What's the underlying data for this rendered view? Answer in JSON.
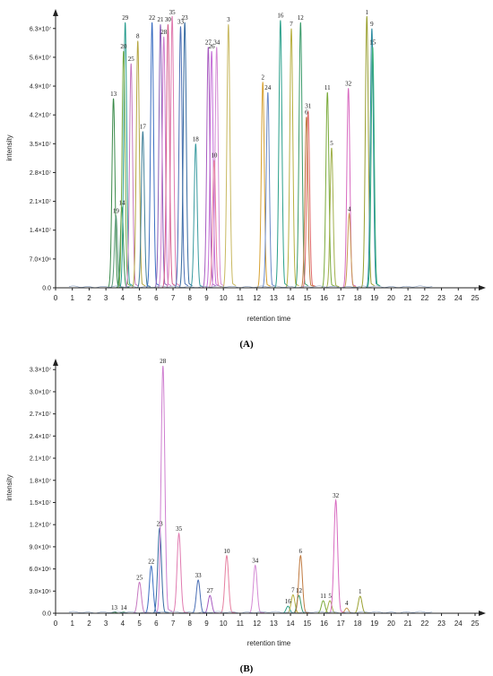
{
  "panels": [
    {
      "panel_label": "(A)",
      "chart_data": {
        "type": "line",
        "title": "",
        "xlabel": "retention time",
        "ylabel": "intensity",
        "xlim": [
          0,
          25
        ],
        "ylim": [
          0,
          66000000
        ],
        "x_ticks": [
          0,
          1,
          2,
          3,
          4,
          5,
          6,
          7,
          8,
          9,
          10,
          11,
          12,
          13,
          14,
          15,
          16,
          17,
          18,
          19,
          20,
          21,
          22,
          23,
          24,
          25
        ],
        "y_ticks": [
          {
            "value": 0,
            "label": "0.0"
          },
          {
            "value": 7000000,
            "label": "7.0×10⁶"
          },
          {
            "value": 14000000,
            "label": "1.4×10⁷"
          },
          {
            "value": 21000000,
            "label": "2.1×10⁷"
          },
          {
            "value": 28000000,
            "label": "2.8×10⁷"
          },
          {
            "value": 35000000,
            "label": "3.5×10⁷"
          },
          {
            "value": 42000000,
            "label": "4.2×10⁷"
          },
          {
            "value": 49000000,
            "label": "4.9×10⁷"
          },
          {
            "value": 56000000,
            "label": "5.6×10⁷"
          },
          {
            "value": 63000000,
            "label": "6.3×10⁷"
          }
        ],
        "grid": false,
        "peaks": [
          {
            "label": "13",
            "rt": 3.45,
            "intensity": 46000000,
            "color": "#3a8a4a"
          },
          {
            "label": "19",
            "rt": 3.6,
            "intensity": 17500000,
            "color": "#5c9a7a"
          },
          {
            "label": "14",
            "rt": 3.95,
            "intensity": 19500000,
            "color": "#2e8b57"
          },
          {
            "label": "29",
            "rt": 4.15,
            "intensity": 64500000,
            "color": "#2a9d8f"
          },
          {
            "label": "20",
            "rt": 4.05,
            "intensity": 57500000,
            "color": "#7cae4a"
          },
          {
            "label": "25",
            "rt": 4.5,
            "intensity": 54500000,
            "color": "#c678c0"
          },
          {
            "label": "8",
            "rt": 4.9,
            "intensity": 60000000,
            "color": "#b5a642"
          },
          {
            "label": "17",
            "rt": 5.2,
            "intensity": 38000000,
            "color": "#3f7f99"
          },
          {
            "label": "22",
            "rt": 5.75,
            "intensity": 64500000,
            "color": "#3b6ec2"
          },
          {
            "label": "21",
            "rt": 6.25,
            "intensity": 64000000,
            "color": "#8a60b8"
          },
          {
            "label": "28",
            "rt": 6.45,
            "intensity": 61000000,
            "color": "#cf7fd0"
          },
          {
            "label": "30",
            "rt": 6.7,
            "intensity": 64000000,
            "color": "#d45a8a"
          },
          {
            "label": "35",
            "rt": 6.95,
            "intensity": 66000000,
            "color": "#e07bb0"
          },
          {
            "label": "33",
            "rt": 7.45,
            "intensity": 63500000,
            "color": "#4a6fb5"
          },
          {
            "label": "23",
            "rt": 7.7,
            "intensity": 64500000,
            "color": "#356aa0"
          },
          {
            "label": "18",
            "rt": 8.35,
            "intensity": 35000000,
            "color": "#3a9ba0"
          },
          {
            "label": "27",
            "rt": 9.1,
            "intensity": 58500000,
            "color": "#a85ac0"
          },
          {
            "label": "26",
            "rt": 9.3,
            "intensity": 57500000,
            "color": "#c56fd8"
          },
          {
            "label": "34",
            "rt": 9.6,
            "intensity": 58500000,
            "color": "#d48ad4"
          },
          {
            "label": "10",
            "rt": 9.45,
            "intensity": 31000000,
            "color": "#e67fa0"
          },
          {
            "label": "3",
            "rt": 10.3,
            "intensity": 64000000,
            "color": "#c8b860"
          },
          {
            "label": "2",
            "rt": 12.35,
            "intensity": 50000000,
            "color": "#d6a030"
          },
          {
            "label": "24",
            "rt": 12.65,
            "intensity": 47500000,
            "color": "#6a8ac8"
          },
          {
            "label": "16",
            "rt": 13.4,
            "intensity": 65000000,
            "color": "#2aa08a"
          },
          {
            "label": "7",
            "rt": 14.05,
            "intensity": 63000000,
            "color": "#b8b040"
          },
          {
            "label": "12",
            "rt": 14.6,
            "intensity": 64500000,
            "color": "#3a9a6a"
          },
          {
            "label": "31",
            "rt": 15.05,
            "intensity": 43000000,
            "color": "#e06a6a"
          },
          {
            "label": "6",
            "rt": 14.95,
            "intensity": 41500000,
            "color": "#c07a40"
          },
          {
            "label": "11",
            "rt": 16.2,
            "intensity": 47500000,
            "color": "#7aaa3a"
          },
          {
            "label": "5",
            "rt": 16.45,
            "intensity": 34000000,
            "color": "#a0b04a"
          },
          {
            "label": "32",
            "rt": 17.45,
            "intensity": 48500000,
            "color": "#d86ac0"
          },
          {
            "label": "4",
            "rt": 17.5,
            "intensity": 18000000,
            "color": "#c89a50"
          },
          {
            "label": "1",
            "rt": 18.55,
            "intensity": 66000000,
            "color": "#9aa030"
          },
          {
            "label": "9",
            "rt": 18.85,
            "intensity": 63000000,
            "color": "#2a8aa0"
          },
          {
            "label": "15",
            "rt": 18.9,
            "intensity": 58500000,
            "color": "#3ab07a"
          }
        ]
      }
    },
    {
      "panel_label": "(B)",
      "chart_data": {
        "type": "line",
        "title": "",
        "xlabel": "retention time",
        "ylabel": "intensity",
        "xlim": [
          0,
          25
        ],
        "ylim": [
          0,
          34000000
        ],
        "x_ticks": [
          0,
          1,
          2,
          3,
          4,
          5,
          6,
          7,
          8,
          9,
          10,
          11,
          12,
          13,
          14,
          15,
          16,
          17,
          18,
          19,
          20,
          21,
          22,
          23,
          24,
          25
        ],
        "y_ticks": [
          {
            "value": 0,
            "label": "0.0"
          },
          {
            "value": 3000000,
            "label": "3.0×10⁶"
          },
          {
            "value": 6000000,
            "label": "6.0×10⁶"
          },
          {
            "value": 9000000,
            "label": "9.0×10⁶"
          },
          {
            "value": 12000000,
            "label": "1.2×10⁷"
          },
          {
            "value": 15000000,
            "label": "1.5×10⁷"
          },
          {
            "value": 18000000,
            "label": "1.8×10⁷"
          },
          {
            "value": 21000000,
            "label": "2.1×10⁷"
          },
          {
            "value": 24000000,
            "label": "2.4×10⁷"
          },
          {
            "value": 27000000,
            "label": "2.7×10⁷"
          },
          {
            "value": 30000000,
            "label": "3.0×10⁷"
          },
          {
            "value": 33000000,
            "label": "3.3×10⁷"
          }
        ],
        "grid": false,
        "peaks": [
          {
            "label": "13",
            "rt": 3.5,
            "intensity": 150000,
            "color": "#3a8a4a"
          },
          {
            "label": "14",
            "rt": 4.05,
            "intensity": 150000,
            "color": "#2e8b57"
          },
          {
            "label": "25",
            "rt": 5.0,
            "intensity": 4200000,
            "color": "#c678c0"
          },
          {
            "label": "22",
            "rt": 5.7,
            "intensity": 6400000,
            "color": "#3b6ec2"
          },
          {
            "label": "23",
            "rt": 6.2,
            "intensity": 11500000,
            "color": "#356aa0"
          },
          {
            "label": "28",
            "rt": 6.4,
            "intensity": 33500000,
            "color": "#cf7fd0"
          },
          {
            "label": "35",
            "rt": 7.35,
            "intensity": 10800000,
            "color": "#e07bb0"
          },
          {
            "label": "33",
            "rt": 8.5,
            "intensity": 4500000,
            "color": "#4a6fb5"
          },
          {
            "label": "27",
            "rt": 9.2,
            "intensity": 2400000,
            "color": "#a85ac0"
          },
          {
            "label": "10",
            "rt": 10.2,
            "intensity": 7800000,
            "color": "#e67fa0"
          },
          {
            "label": "34",
            "rt": 11.9,
            "intensity": 6500000,
            "color": "#d48ad4"
          },
          {
            "label": "16",
            "rt": 13.85,
            "intensity": 950000,
            "color": "#2aa08a"
          },
          {
            "label": "7",
            "rt": 14.15,
            "intensity": 2500000,
            "color": "#b8b040"
          },
          {
            "label": "12",
            "rt": 14.5,
            "intensity": 2400000,
            "color": "#3a9a6a"
          },
          {
            "label": "6",
            "rt": 14.6,
            "intensity": 7800000,
            "color": "#c07a40"
          },
          {
            "label": "11",
            "rt": 15.95,
            "intensity": 1700000,
            "color": "#7aaa3a"
          },
          {
            "label": "5",
            "rt": 16.35,
            "intensity": 1700000,
            "color": "#a0b04a"
          },
          {
            "label": "32",
            "rt": 16.7,
            "intensity": 15300000,
            "color": "#d86ac0"
          },
          {
            "label": "4",
            "rt": 17.35,
            "intensity": 700000,
            "color": "#c89a50"
          },
          {
            "label": "1",
            "rt": 18.15,
            "intensity": 2300000,
            "color": "#9aa030"
          }
        ]
      }
    }
  ]
}
